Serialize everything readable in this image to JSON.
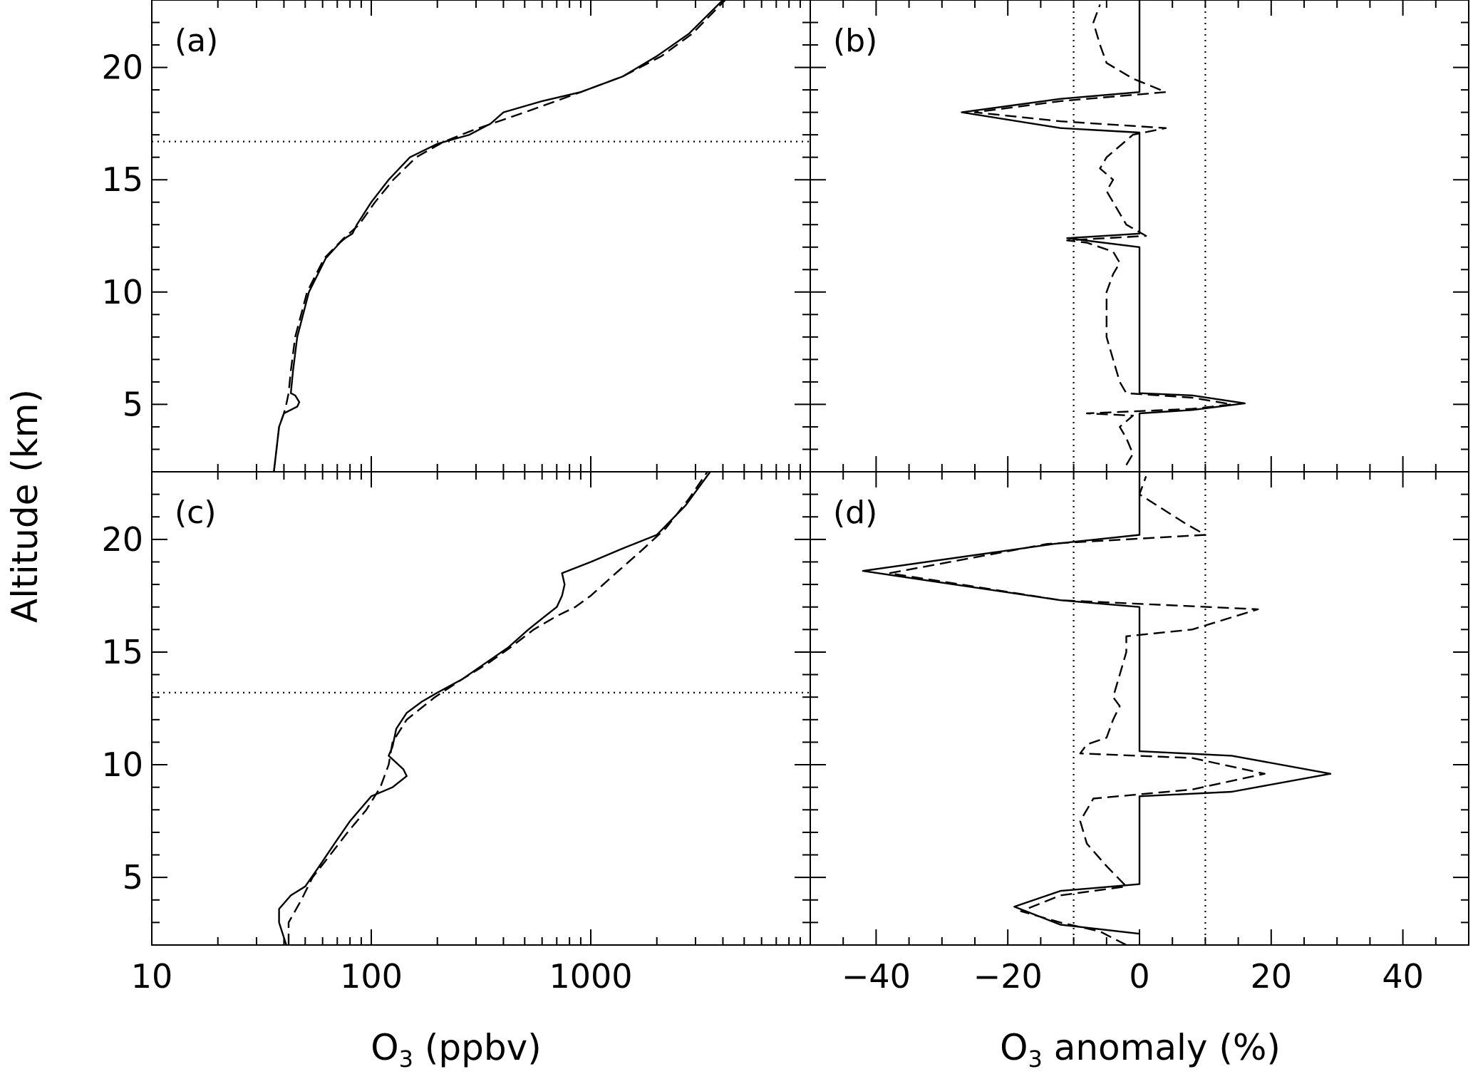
{
  "figure": {
    "ylabel": "Altitude (km)",
    "xlabel_left_prefix": "O",
    "xlabel_left_sub": "3",
    "xlabel_left_suffix": " (ppbv)",
    "xlabel_right_prefix": "O",
    "xlabel_right_sub": "3",
    "xlabel_right_suffix": " anomaly (%)"
  },
  "chart_data": [
    {
      "id": "a",
      "panel_label": "(a)",
      "type": "line",
      "x_scale": "log",
      "xlim": [
        10,
        10000
      ],
      "ylim": [
        2,
        23
      ],
      "xticks": [
        10,
        100,
        1000
      ],
      "xtick_labels": [],
      "yticks": [
        5,
        10,
        15,
        20
      ],
      "ytick_labels": [
        "5",
        "10",
        "15",
        "20"
      ],
      "hlines": [
        16.7
      ],
      "vlines": [],
      "series": [
        {
          "style": "solid",
          "points": [
            [
              36,
              2.0
            ],
            [
              37,
              3.0
            ],
            [
              38,
              4.0
            ],
            [
              40,
              4.6
            ],
            [
              46,
              4.9
            ],
            [
              47,
              5.1
            ],
            [
              45,
              5.4
            ],
            [
              43,
              5.5
            ],
            [
              44,
              6.5
            ],
            [
              46,
              8.0
            ],
            [
              52,
              10.0
            ],
            [
              62,
              11.5
            ],
            [
              72,
              12.2
            ],
            [
              76,
              12.4
            ],
            [
              82,
              12.6
            ],
            [
              86,
              13.0
            ],
            [
              100,
              14.0
            ],
            [
              120,
              15.0
            ],
            [
              150,
              16.0
            ],
            [
              200,
              16.6
            ],
            [
              280,
              17.0
            ],
            [
              350,
              17.5
            ],
            [
              400,
              18.0
            ],
            [
              600,
              18.5
            ],
            [
              900,
              18.9
            ],
            [
              1400,
              19.6
            ],
            [
              2000,
              20.5
            ],
            [
              2800,
              21.5
            ],
            [
              4000,
              23.0
            ]
          ]
        },
        {
          "style": "dashed",
          "points": [
            [
              36,
              2.0
            ],
            [
              37,
              3.0
            ],
            [
              38,
              4.0
            ],
            [
              40,
              4.6
            ],
            [
              41,
              5.0
            ],
            [
              42,
              5.5
            ],
            [
              43,
              6.5
            ],
            [
              45,
              8.0
            ],
            [
              51,
              10.0
            ],
            [
              61,
              11.5
            ],
            [
              75,
              12.4
            ],
            [
              88,
              13.0
            ],
            [
              104,
              14.0
            ],
            [
              126,
              15.0
            ],
            [
              160,
              16.0
            ],
            [
              215,
              16.7
            ],
            [
              290,
              17.2
            ],
            [
              380,
              17.6
            ],
            [
              500,
              18.0
            ],
            [
              650,
              18.4
            ],
            [
              900,
              18.9
            ],
            [
              1400,
              19.6
            ],
            [
              2100,
              20.5
            ],
            [
              2900,
              21.5
            ],
            [
              4100,
              23.0
            ]
          ]
        }
      ]
    },
    {
      "id": "b",
      "panel_label": "(b)",
      "type": "line",
      "x_scale": "linear",
      "xlim": [
        -50,
        50
      ],
      "ylim": [
        2,
        23
      ],
      "xticks": [
        -40,
        -20,
        0,
        20,
        40
      ],
      "xtick_labels": [],
      "yticks": [
        5,
        10,
        15,
        20
      ],
      "ytick_labels": [],
      "hlines": [],
      "vlines": [
        -10,
        10
      ],
      "series": [
        {
          "style": "solid",
          "points": [
            [
              0,
              2.0
            ],
            [
              0,
              4.6
            ],
            [
              8,
              4.75
            ],
            [
              16,
              5.05
            ],
            [
              8,
              5.4
            ],
            [
              0,
              5.5
            ],
            [
              0,
              12.0
            ],
            [
              -11,
              12.4
            ],
            [
              0,
              12.6
            ],
            [
              0,
              17.1
            ],
            [
              -12,
              17.3
            ],
            [
              -27,
              18.0
            ],
            [
              -12,
              18.6
            ],
            [
              0,
              18.9
            ],
            [
              0,
              23.0
            ]
          ]
        },
        {
          "style": "dashed",
          "points": [
            [
              -2,
              2.3
            ],
            [
              -1,
              2.8
            ],
            [
              -2,
              3.5
            ],
            [
              -3,
              4.0
            ],
            [
              -1,
              4.5
            ],
            [
              -8,
              4.6
            ],
            [
              8,
              4.8
            ],
            [
              14,
              5.0
            ],
            [
              8,
              5.3
            ],
            [
              -2,
              5.5
            ],
            [
              -3,
              6.0
            ],
            [
              -4,
              7.0
            ],
            [
              -5,
              8.0
            ],
            [
              -5,
              9.0
            ],
            [
              -5,
              10.0
            ],
            [
              -4,
              10.8
            ],
            [
              -3,
              11.3
            ],
            [
              -4,
              11.8
            ],
            [
              -8,
              12.2
            ],
            [
              -11,
              12.3
            ],
            [
              1,
              12.5
            ],
            [
              -2,
              13.0
            ],
            [
              -4,
              14.0
            ],
            [
              -5,
              14.5
            ],
            [
              -4,
              15.0
            ],
            [
              -6,
              15.5
            ],
            [
              -5,
              16.0
            ],
            [
              -3,
              16.5
            ],
            [
              -1,
              17.0
            ],
            [
              4,
              17.3
            ],
            [
              -12,
              17.6
            ],
            [
              -25,
              18.0
            ],
            [
              -12,
              18.5
            ],
            [
              4,
              18.9
            ],
            [
              -1,
              19.5
            ],
            [
              -5,
              20.2
            ],
            [
              -6,
              21.0
            ],
            [
              -7,
              22.0
            ],
            [
              -6,
              22.8
            ]
          ]
        }
      ]
    },
    {
      "id": "c",
      "panel_label": "(c)",
      "type": "line",
      "x_scale": "log",
      "xlim": [
        10,
        10000
      ],
      "ylim": [
        2,
        23
      ],
      "xticks": [
        10,
        100,
        1000
      ],
      "xtick_labels": [
        "10",
        "100",
        "1000"
      ],
      "yticks": [
        5,
        10,
        15,
        20
      ],
      "ytick_labels": [
        "5",
        "10",
        "15",
        "20"
      ],
      "hlines": [
        13.2
      ],
      "vlines": [],
      "series": [
        {
          "style": "solid",
          "points": [
            [
              41,
              2.0
            ],
            [
              38,
              3.0
            ],
            [
              38,
              3.6
            ],
            [
              43,
              4.2
            ],
            [
              50,
              4.6
            ],
            [
              58,
              5.5
            ],
            [
              68,
              6.5
            ],
            [
              80,
              7.5
            ],
            [
              100,
              8.6
            ],
            [
              125,
              9.0
            ],
            [
              145,
              9.5
            ],
            [
              140,
              9.8
            ],
            [
              120,
              10.4
            ],
            [
              125,
              10.8
            ],
            [
              130,
              11.6
            ],
            [
              145,
              12.3
            ],
            [
              170,
              12.8
            ],
            [
              200,
              13.2
            ],
            [
              260,
              13.8
            ],
            [
              330,
              14.5
            ],
            [
              420,
              15.2
            ],
            [
              520,
              16.0
            ],
            [
              620,
              16.6
            ],
            [
              700,
              17.0
            ],
            [
              740,
              17.5
            ],
            [
              760,
              18.0
            ],
            [
              740,
              18.5
            ],
            [
              1000,
              19.0
            ],
            [
              1400,
              19.6
            ],
            [
              2000,
              20.2
            ],
            [
              2700,
              21.5
            ],
            [
              3500,
              23.0
            ]
          ]
        },
        {
          "style": "dashed",
          "points": [
            [
              42,
              2.0
            ],
            [
              42,
              3.0
            ],
            [
              48,
              4.0
            ],
            [
              54,
              5.0
            ],
            [
              65,
              6.0
            ],
            [
              78,
              7.0
            ],
            [
              95,
              8.0
            ],
            [
              110,
              9.0
            ],
            [
              120,
              10.0
            ],
            [
              125,
              11.0
            ],
            [
              145,
              12.0
            ],
            [
              195,
              13.0
            ],
            [
              260,
              13.8
            ],
            [
              340,
              14.5
            ],
            [
              430,
              15.2
            ],
            [
              550,
              16.0
            ],
            [
              700,
              16.6
            ],
            [
              850,
              17.0
            ],
            [
              1000,
              17.5
            ],
            [
              1300,
              18.5
            ],
            [
              1700,
              19.5
            ],
            [
              2200,
              20.5
            ],
            [
              2800,
              21.8
            ],
            [
              3400,
              23.0
            ]
          ]
        }
      ]
    },
    {
      "id": "d",
      "panel_label": "(d)",
      "type": "line",
      "x_scale": "linear",
      "xlim": [
        -50,
        50
      ],
      "ylim": [
        2,
        23
      ],
      "xticks": [
        -40,
        -20,
        0,
        20,
        40
      ],
      "xtick_labels": [
        "-40",
        "-20",
        "0",
        "20",
        "40"
      ],
      "yticks": [
        5,
        10,
        15,
        20
      ],
      "ytick_labels": [],
      "hlines": [],
      "vlines": [
        -10,
        10
      ],
      "series": [
        {
          "style": "solid",
          "points": [
            [
              0,
              2.5
            ],
            [
              -12,
              2.9
            ],
            [
              -19,
              3.7
            ],
            [
              -12,
              4.4
            ],
            [
              0,
              4.7
            ],
            [
              0,
              8.6
            ],
            [
              14,
              8.8
            ],
            [
              29,
              9.6
            ],
            [
              14,
              10.4
            ],
            [
              0,
              10.6
            ],
            [
              0,
              17.0
            ],
            [
              -12,
              17.3
            ],
            [
              -42,
              18.6
            ],
            [
              -13,
              19.8
            ],
            [
              0,
              20.2
            ],
            [
              0,
              23.0
            ]
          ]
        },
        {
          "style": "dashed",
          "points": [
            [
              -2,
              2.0
            ],
            [
              -6,
              2.6
            ],
            [
              -12,
              3.0
            ],
            [
              -18,
              3.5
            ],
            [
              -12,
              4.2
            ],
            [
              -2,
              4.6
            ],
            [
              -5,
              5.5
            ],
            [
              -8,
              6.5
            ],
            [
              -9,
              7.5
            ],
            [
              -7,
              8.5
            ],
            [
              8,
              8.9
            ],
            [
              19,
              9.6
            ],
            [
              8,
              10.3
            ],
            [
              -9,
              10.5
            ],
            [
              -8,
              10.9
            ],
            [
              -5,
              11.2
            ],
            [
              -4,
              12.0
            ],
            [
              -3,
              12.6
            ],
            [
              -4,
              13.0
            ],
            [
              -3,
              14.0
            ],
            [
              -2,
              15.0
            ],
            [
              -2,
              15.7
            ],
            [
              8,
              16.0
            ],
            [
              18,
              16.9
            ],
            [
              -12,
              17.3
            ],
            [
              -38,
              18.5
            ],
            [
              -14,
              19.8
            ],
            [
              10,
              20.2
            ],
            [
              7,
              20.7
            ],
            [
              0,
              22.0
            ],
            [
              1,
              22.8
            ]
          ]
        }
      ]
    }
  ]
}
